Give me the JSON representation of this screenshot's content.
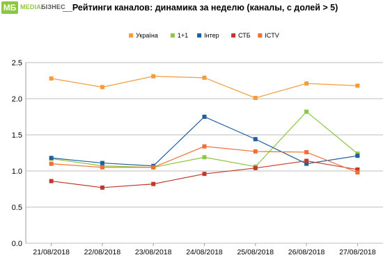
{
  "header": {
    "logo_text": "МБ",
    "brand_part1": "MEDIA",
    "brand_part2": "БІЗНЕС",
    "title": "__Рейтинги каналов: динамика за неделю (каналы, с долей > 5)"
  },
  "chart_data": {
    "type": "line",
    "title": "",
    "xlabel": "",
    "ylabel": "",
    "ylim": [
      0,
      2.5
    ],
    "yticks": [
      "0.0",
      "0.5",
      "1.0",
      "1.5",
      "2.0",
      "2.5"
    ],
    "grid": true,
    "legend_position": "top",
    "categories": [
      "21/08/2018",
      "22/08/2018",
      "23/08/2018",
      "24/08/2018",
      "25/08/2018",
      "26/08/2018",
      "27/08/2018"
    ],
    "series": [
      {
        "name": "Україна",
        "color": "#f39c3a",
        "values": [
          2.28,
          2.16,
          2.31,
          2.29,
          2.01,
          2.21,
          2.18
        ]
      },
      {
        "name": "1+1",
        "color": "#8dc63f",
        "values": [
          1.17,
          1.07,
          1.05,
          1.19,
          1.06,
          1.82,
          1.24
        ]
      },
      {
        "name": "Інтер",
        "color": "#1f5f9e",
        "values": [
          1.18,
          1.11,
          1.07,
          1.75,
          1.44,
          1.1,
          1.21
        ]
      },
      {
        "name": "СТБ",
        "color": "#c0392b",
        "values": [
          0.86,
          0.77,
          0.82,
          0.96,
          1.04,
          1.14,
          1.02
        ]
      },
      {
        "name": "ICTV",
        "color": "#ef6f34",
        "values": [
          1.1,
          1.05,
          1.05,
          1.34,
          1.27,
          1.26,
          0.98
        ]
      }
    ]
  }
}
